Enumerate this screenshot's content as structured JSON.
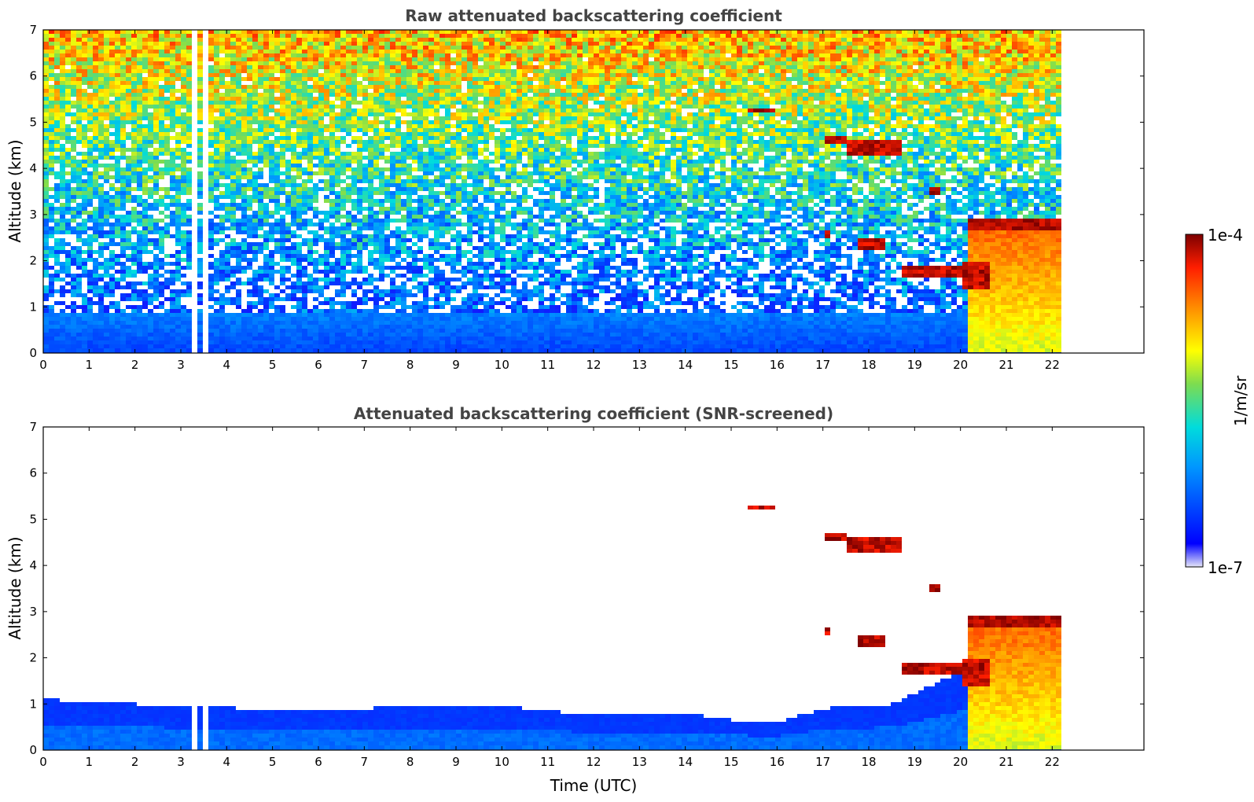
{
  "chart_data": [
    {
      "type": "heatmap",
      "title": "Raw attenuated backscattering coefficient",
      "xlabel": "",
      "ylabel": "Altitude (km)",
      "xlim": [
        0,
        24
      ],
      "ylim": [
        0,
        7
      ],
      "xticks": [
        "0",
        "1",
        "2",
        "3",
        "4",
        "5",
        "6",
        "7",
        "8",
        "9",
        "10",
        "11",
        "12",
        "13",
        "14",
        "15",
        "16",
        "17",
        "18",
        "19",
        "20",
        "21",
        "22"
      ],
      "yticks": [
        "0",
        "1",
        "2",
        "3",
        "4",
        "5",
        "6",
        "7"
      ],
      "data_end_time": 22.2,
      "data_gaps": [
        [
          3.27,
          3.37
        ],
        [
          3.52,
          3.6
        ],
        [
          4.03,
          4.07
        ],
        [
          10.55,
          10.6
        ]
      ],
      "features": [
        {
          "kind": "cloud",
          "t": [
            15.35,
            15.95
          ],
          "alt": [
            5.2,
            5.3
          ]
        },
        {
          "kind": "cloud",
          "t": [
            17.0,
            17.5
          ],
          "alt": [
            4.55,
            4.7
          ]
        },
        {
          "kind": "cloud",
          "t": [
            17.5,
            18.7
          ],
          "alt": [
            4.3,
            4.6
          ]
        },
        {
          "kind": "cloud",
          "t": [
            19.3,
            19.55
          ],
          "alt": [
            3.4,
            3.6
          ]
        },
        {
          "kind": "cloud",
          "t": [
            17.0,
            17.15
          ],
          "alt": [
            2.5,
            2.65
          ]
        },
        {
          "kind": "cloud",
          "t": [
            17.8,
            18.35
          ],
          "alt": [
            2.2,
            2.45
          ]
        },
        {
          "kind": "cloud",
          "t": [
            18.7,
            20.0
          ],
          "alt": [
            1.6,
            1.85
          ]
        },
        {
          "kind": "cloud",
          "t": [
            20.0,
            20.6
          ],
          "alt": [
            1.35,
            1.95
          ]
        },
        {
          "kind": "precipitation",
          "t": [
            20.2,
            22.2
          ],
          "alt": [
            0,
            2.9
          ]
        }
      ]
    },
    {
      "type": "heatmap",
      "title": "Attenuated backscattering coefficient (SNR-screened)",
      "xlabel": "Time (UTC)",
      "ylabel": "Altitude (km)",
      "xlim": [
        0,
        24
      ],
      "ylim": [
        0,
        7
      ],
      "xticks": [
        "0",
        "1",
        "2",
        "3",
        "4",
        "5",
        "6",
        "7",
        "8",
        "9",
        "10",
        "11",
        "12",
        "13",
        "14",
        "15",
        "16",
        "17",
        "18",
        "19",
        "20",
        "21",
        "22"
      ],
      "yticks": [
        "0",
        "1",
        "2",
        "3",
        "4",
        "5",
        "6",
        "7"
      ],
      "boundary_layer_top": [
        [
          0,
          1.1
        ],
        [
          3,
          0.95
        ],
        [
          6,
          0.85
        ],
        [
          8,
          0.95
        ],
        [
          10,
          0.95
        ],
        [
          12,
          0.75
        ],
        [
          14,
          0.8
        ],
        [
          15,
          0.65
        ],
        [
          16,
          0.6
        ],
        [
          17,
          0.9
        ],
        [
          18.5,
          1.0
        ],
        [
          20,
          1.7
        ]
      ]
    }
  ],
  "colorbar": {
    "label": "1/m/sr",
    "max_label": "1e-4",
    "min_label": "1e-7",
    "scale": "log",
    "colormap": "jet",
    "colors": [
      "#e6e6f8",
      "#0000ff",
      "#0096ff",
      "#00dcdc",
      "#7ddc50",
      "#ffff00",
      "#ff8c00",
      "#ff1e00",
      "#7d0000"
    ]
  }
}
